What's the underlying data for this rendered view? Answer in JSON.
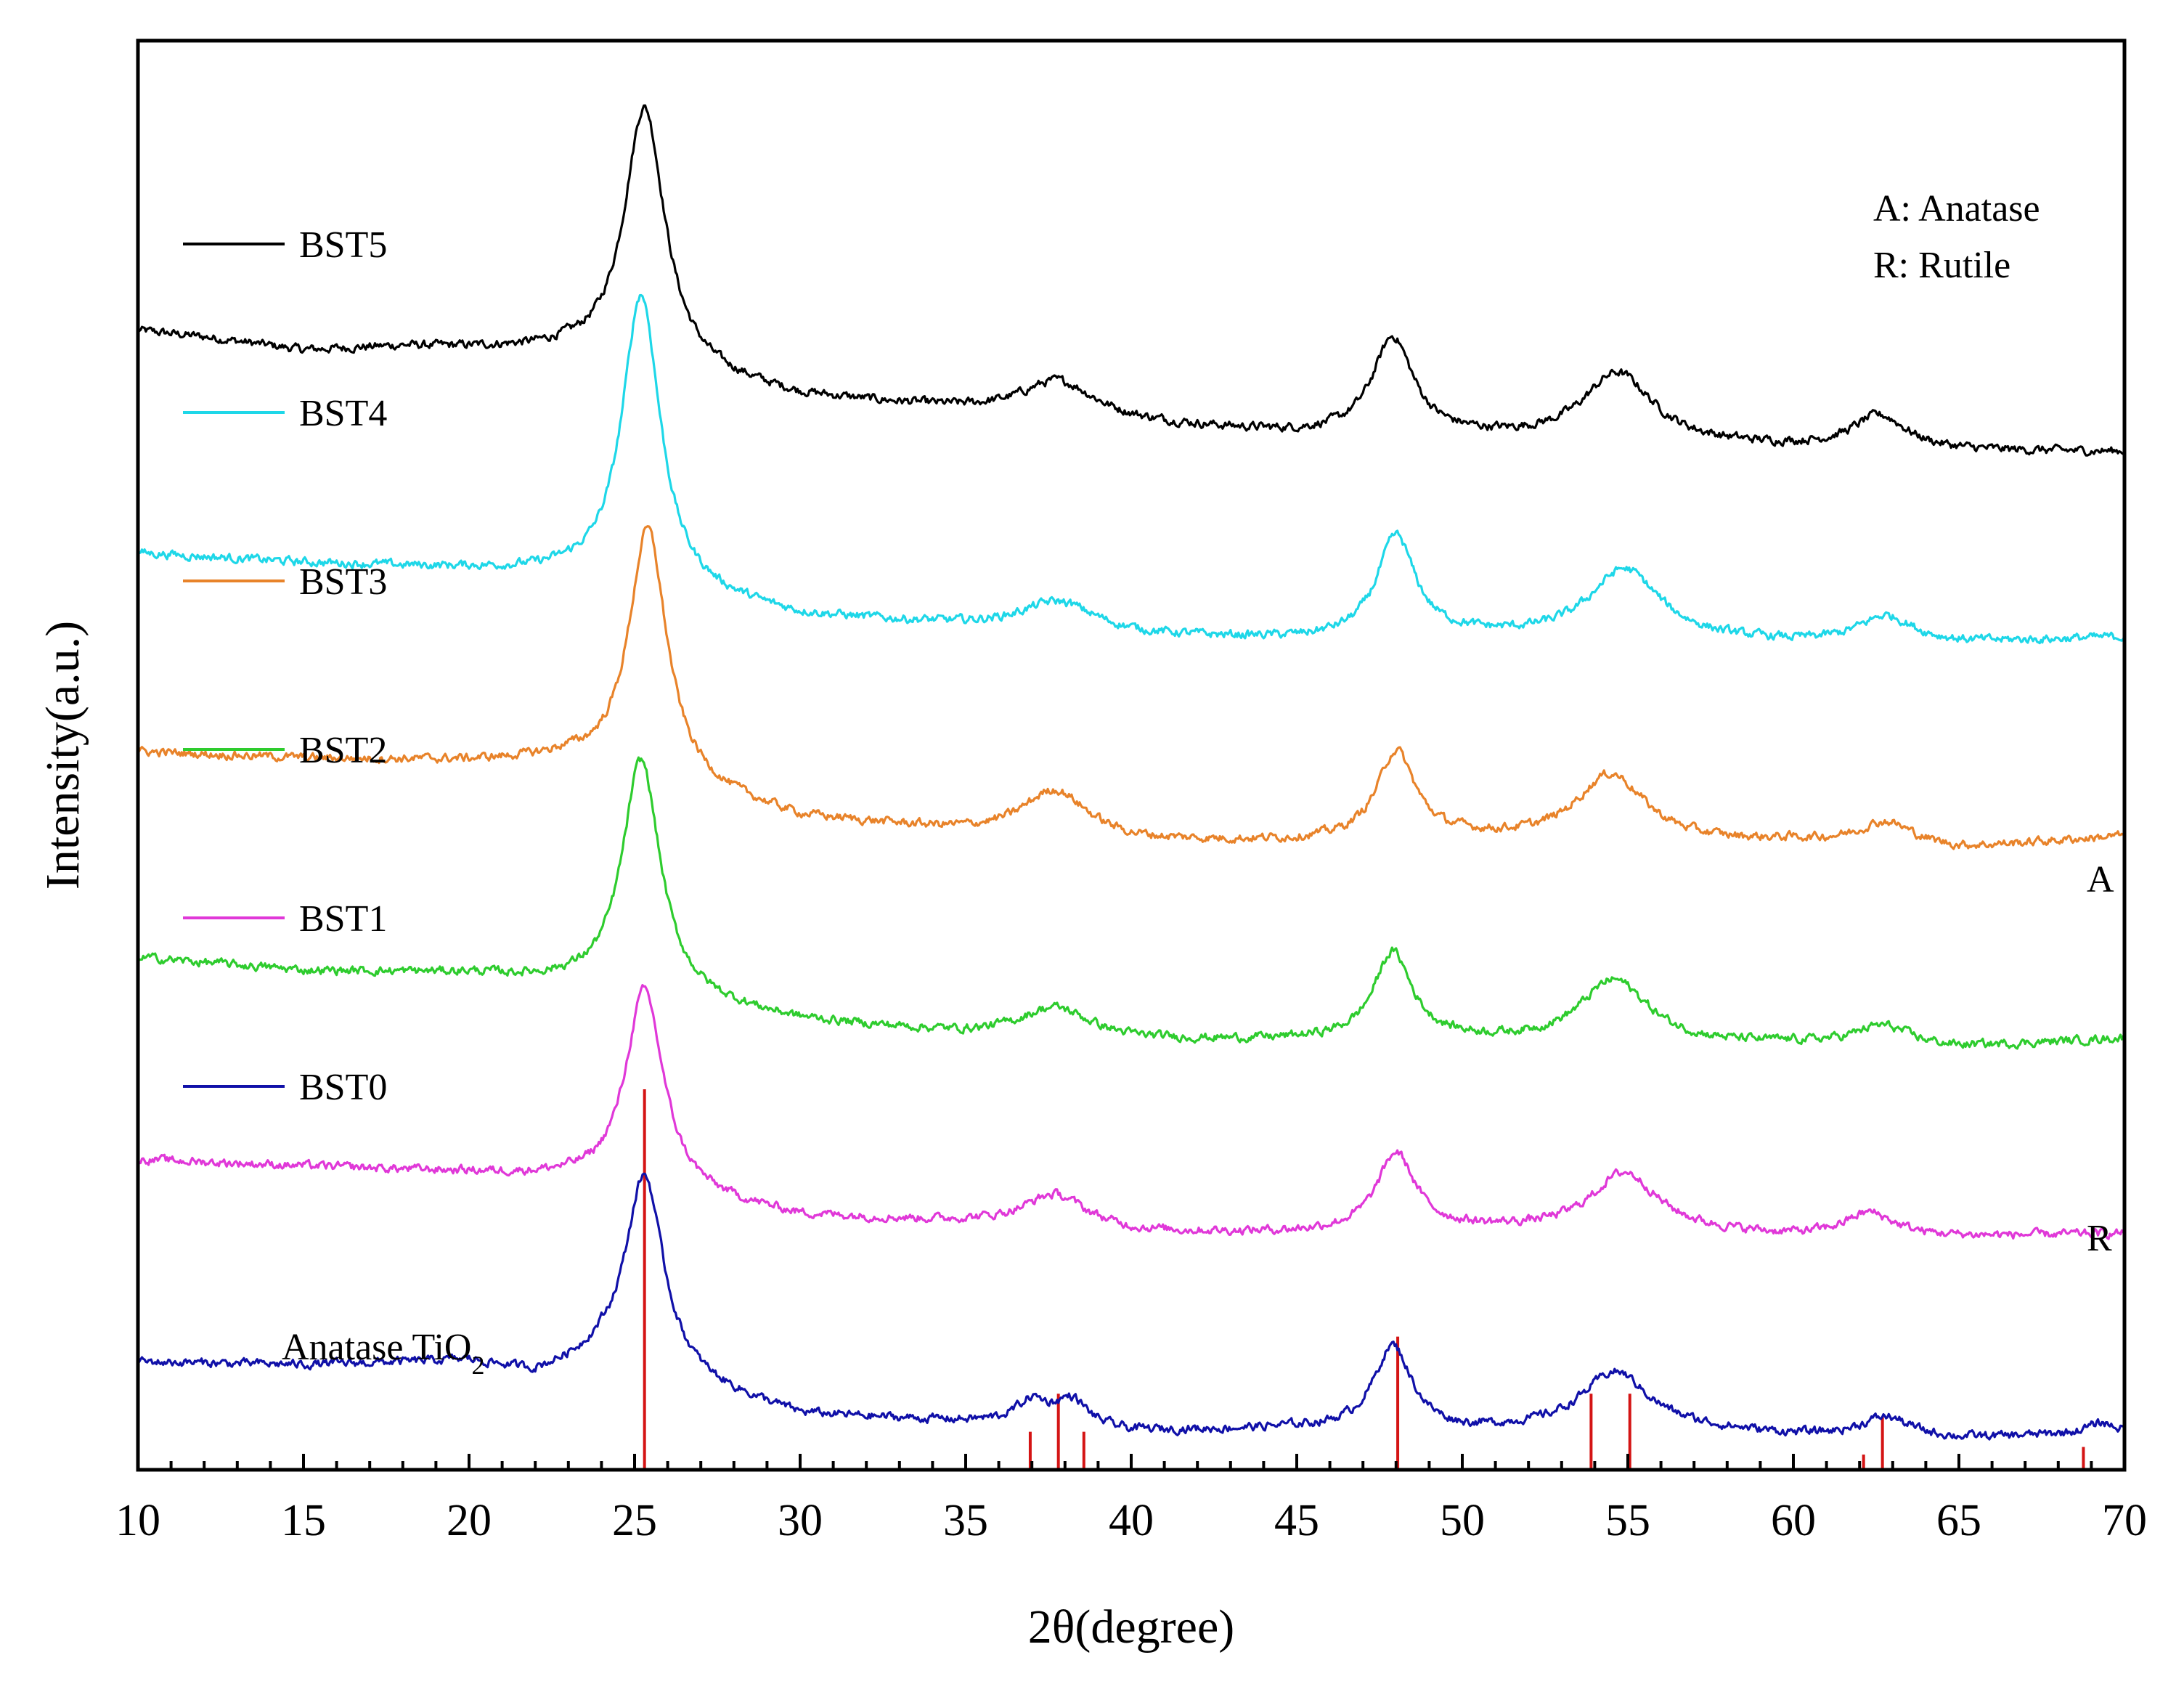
{
  "chart_data": {
    "type": "line",
    "title": "",
    "xlabel": "2θ(degree)",
    "ylabel": "Intensity(a.u.)",
    "xlim": [
      10,
      70
    ],
    "x_ticks": [
      "10",
      "15",
      "20",
      "25",
      "30",
      "35",
      "40",
      "45",
      "50",
      "55",
      "60",
      "65",
      "70"
    ],
    "x_tick_values": [
      10,
      15,
      20,
      25,
      30,
      35,
      40,
      45,
      50,
      55,
      60,
      65,
      70
    ],
    "y_ticks_shown": false,
    "grid": false,
    "legend_position": "left",
    "annotations": {
      "phase_key_line1": "A: Anatase",
      "phase_key_line2": "R: Rutile",
      "label_A": "A",
      "label_R": "R",
      "reference_label": "Anatase TiO",
      "reference_label_subscript": "2"
    },
    "series": [
      {
        "name": "BST5",
        "color": "#000000",
        "offset": 5.2,
        "scale": 1.0,
        "baseline": [
          [
            10,
            0.12
          ],
          [
            12,
            0.08
          ],
          [
            15,
            0.0
          ],
          [
            18,
            0.02
          ],
          [
            21,
            0.0
          ],
          [
            23,
            -0.02
          ],
          [
            30,
            -0.28
          ],
          [
            35,
            -0.36
          ],
          [
            40,
            -0.44
          ],
          [
            45,
            -0.5
          ],
          [
            50,
            -0.52
          ],
          [
            55,
            -0.56
          ],
          [
            60,
            -0.58
          ],
          [
            65,
            -0.6
          ],
          [
            70,
            -0.6
          ]
        ],
        "peaks": [
          [
            25.3,
            1.55,
            0.75
          ],
          [
            37.8,
            0.22,
            1.4
          ],
          [
            47.9,
            0.58,
            0.75
          ],
          [
            54.7,
            0.42,
            1.3
          ],
          [
            62.6,
            0.2,
            1.0
          ]
        ]
      },
      {
        "name": "BST4",
        "color": "#1ed7e8",
        "offset": 4.0,
        "scale": 1.0,
        "baseline": [
          [
            10,
            0.0
          ],
          [
            15,
            -0.06
          ],
          [
            20,
            -0.1
          ],
          [
            23,
            -0.14
          ],
          [
            30,
            -0.38
          ],
          [
            35,
            -0.44
          ],
          [
            40,
            -0.5
          ],
          [
            45,
            -0.52
          ],
          [
            50,
            -0.5
          ],
          [
            55,
            -0.52
          ],
          [
            60,
            -0.54
          ],
          [
            65,
            -0.54
          ],
          [
            70,
            -0.5
          ]
        ],
        "peaks": [
          [
            25.2,
            1.75,
            0.7
          ],
          [
            37.8,
            0.18,
            1.4
          ],
          [
            48.0,
            0.6,
            0.7
          ],
          [
            54.9,
            0.42,
            1.3
          ],
          [
            62.8,
            0.16,
            1.0
          ]
        ]
      },
      {
        "name": "BST3",
        "color": "#e8832a",
        "offset": 2.8,
        "scale": 1.0,
        "baseline": [
          [
            10,
            0.02
          ],
          [
            15,
            -0.02
          ],
          [
            20,
            -0.04
          ],
          [
            23,
            -0.04
          ],
          [
            30,
            -0.38
          ],
          [
            35,
            -0.46
          ],
          [
            40,
            -0.52
          ],
          [
            45,
            -0.52
          ],
          [
            50,
            -0.5
          ],
          [
            55,
            -0.54
          ],
          [
            60,
            -0.52
          ],
          [
            65,
            -0.56
          ],
          [
            70,
            -0.48
          ]
        ],
        "peaks": [
          [
            25.4,
            1.5,
            0.7
          ],
          [
            37.7,
            0.28,
            1.2
          ],
          [
            48.0,
            0.52,
            0.7
          ],
          [
            54.5,
            0.42,
            1.3
          ],
          [
            62.8,
            0.14,
            1.0
          ]
        ]
      },
      {
        "name": "BST2",
        "color": "#2ecc2e",
        "offset": 1.6,
        "scale": 1.0,
        "baseline": [
          [
            10,
            0.0
          ],
          [
            15,
            -0.08
          ],
          [
            20,
            -0.1
          ],
          [
            23,
            -0.16
          ],
          [
            30,
            -0.38
          ],
          [
            35,
            -0.46
          ],
          [
            40,
            -0.5
          ],
          [
            45,
            -0.5
          ],
          [
            50,
            -0.5
          ],
          [
            55,
            -0.54
          ],
          [
            60,
            -0.52
          ],
          [
            65,
            -0.54
          ],
          [
            70,
            -0.48
          ]
        ],
        "peaks": [
          [
            25.2,
            1.4,
            0.7
          ],
          [
            37.7,
            0.18,
            1.3
          ],
          [
            47.9,
            0.52,
            0.7
          ],
          [
            54.6,
            0.4,
            1.3
          ],
          [
            62.7,
            0.12,
            1.0
          ]
        ]
      },
      {
        "name": "BST1",
        "color": "#e038d8",
        "offset": 0.4,
        "scale": 1.0,
        "baseline": [
          [
            10,
            0.0
          ],
          [
            15,
            -0.04
          ],
          [
            20,
            -0.08
          ],
          [
            23,
            -0.12
          ],
          [
            30,
            -0.34
          ],
          [
            35,
            -0.38
          ],
          [
            40,
            -0.44
          ],
          [
            45,
            -0.44
          ],
          [
            50,
            -0.42
          ],
          [
            55,
            -0.42
          ],
          [
            60,
            -0.46
          ],
          [
            65,
            -0.46
          ],
          [
            70,
            -0.44
          ]
        ],
        "peaks": [
          [
            25.3,
            1.2,
            0.7
          ],
          [
            37.7,
            0.2,
            1.2
          ],
          [
            48.0,
            0.46,
            0.7
          ],
          [
            54.9,
            0.34,
            1.2
          ],
          [
            62.3,
            0.14,
            0.9
          ]
        ]
      },
      {
        "name": "BST0",
        "color": "#1010a8",
        "offset": -0.8,
        "scale": 1.0,
        "baseline": [
          [
            10,
            0.0
          ],
          [
            15,
            -0.02
          ],
          [
            20,
            0.0
          ],
          [
            22,
            -0.08
          ],
          [
            24,
            0.0
          ],
          [
            30,
            -0.32
          ],
          [
            35,
            -0.36
          ],
          [
            40,
            -0.42
          ],
          [
            45,
            -0.4
          ],
          [
            50,
            -0.42
          ],
          [
            55,
            -0.38
          ],
          [
            60,
            -0.44
          ],
          [
            65,
            -0.46
          ],
          [
            70,
            -0.42
          ]
        ],
        "peaks": [
          [
            25.3,
            1.18,
            0.7
          ],
          [
            37.0,
            0.14,
            0.6
          ],
          [
            38.2,
            0.16,
            0.6
          ],
          [
            47.9,
            0.5,
            0.7
          ],
          [
            54.6,
            0.32,
            1.2
          ],
          [
            62.8,
            0.12,
            0.9
          ],
          [
            69.3,
            0.06,
            0.5
          ]
        ]
      }
    ],
    "reference_pattern": {
      "name": "Anatase TiO2",
      "color": "#d41414",
      "lines": [
        {
          "x": 25.3,
          "intensity": 100
        },
        {
          "x": 36.95,
          "intensity": 10
        },
        {
          "x": 37.8,
          "intensity": 20
        },
        {
          "x": 38.57,
          "intensity": 10
        },
        {
          "x": 48.05,
          "intensity": 35
        },
        {
          "x": 53.89,
          "intensity": 20
        },
        {
          "x": 55.06,
          "intensity": 20
        },
        {
          "x": 62.12,
          "intensity": 4
        },
        {
          "x": 62.69,
          "intensity": 14
        },
        {
          "x": 68.76,
          "intensity": 6
        }
      ]
    }
  }
}
